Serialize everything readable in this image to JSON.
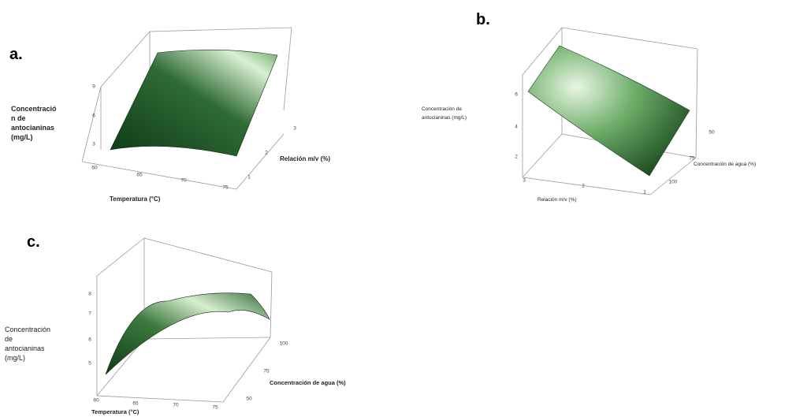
{
  "colors": {
    "surface_dark": "#0f3a18",
    "surface_mid": "#2f6b35",
    "surface_light": "#e8f6e4",
    "box": "#9a9a9a"
  },
  "chart_data": [
    {
      "type": "surface",
      "panel": "a.",
      "zlabel": "Concentració\nn de\nantocianinas\n(mg/L)",
      "xlabel": "Temperatura (°C)",
      "ylabel": "Relación m/v (%)",
      "x_ticks": [
        "60",
        "65",
        "70",
        "75"
      ],
      "y_ticks": [
        "1",
        "2",
        "3"
      ],
      "z_ticks": [
        "3",
        "6",
        "9"
      ],
      "xlim": [
        60,
        75
      ],
      "ylim": [
        1,
        3
      ],
      "zlim": [
        3,
        9
      ]
    },
    {
      "type": "surface",
      "panel": "b.",
      "zlabel": "Concentración de\nantocianinas (mg/L)",
      "xlabel": "Relación m/v (%)",
      "ylabel": "Concentración de agua (%)",
      "x_ticks": [
        "3",
        "2",
        "1"
      ],
      "y_ticks": [
        "100",
        "75",
        "50"
      ],
      "z_ticks": [
        "2",
        "4",
        "6"
      ],
      "xlim": [
        1,
        3
      ],
      "ylim": [
        50,
        100
      ],
      "zlim": [
        2,
        6
      ]
    },
    {
      "type": "surface",
      "panel": "c.",
      "zlabel": "Concentración\nde\nantocianinas\n(mg/L)",
      "xlabel": "Temperatura (°C)",
      "ylabel": "Concentración de agua (%)",
      "x_ticks": [
        "60",
        "65",
        "70",
        "75"
      ],
      "y_ticks": [
        "50",
        "75",
        "100"
      ],
      "z_ticks": [
        "5",
        "6",
        "7",
        "8"
      ],
      "xlim": [
        60,
        75
      ],
      "ylim": [
        50,
        100
      ],
      "zlim": [
        5,
        8
      ]
    }
  ]
}
